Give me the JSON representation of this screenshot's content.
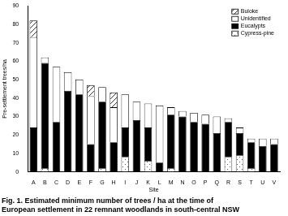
{
  "chart_data": {
    "type": "bar",
    "title": "Fig. 1. Estimated minimum number of trees / ha at the time of European settlement in 22 remnant woodlands in south-central NSW",
    "x_label": "Site",
    "y_label": "Pre-settlement trees/ha",
    "categories": [
      "A",
      "B",
      "C",
      "D",
      "E",
      "F",
      "G",
      "H",
      "I",
      "J",
      "K",
      "L",
      "M",
      "N",
      "O",
      "P",
      "Q",
      "R",
      "S",
      "T",
      "U",
      "V"
    ],
    "series": [
      {
        "name": "Cypress-pine",
        "color": "#ffffff",
        "values": [
          0,
          2,
          0,
          0,
          0,
          0,
          2,
          0,
          8,
          0,
          6,
          0,
          2,
          0,
          0,
          0,
          0,
          8,
          9,
          2,
          0,
          0
        ]
      },
      {
        "name": "Eucalypts",
        "color": "#000000",
        "values": [
          24,
          57,
          27,
          44,
          42,
          15,
          36,
          16,
          16,
          28,
          18,
          5,
          29,
          30,
          27,
          26,
          21,
          19,
          12,
          14,
          14,
          15
        ]
      },
      {
        "name": "Unidentified",
        "color": "#ffffff",
        "values": [
          49,
          3,
          30,
          10,
          8,
          26,
          8,
          19,
          18,
          10,
          13,
          31,
          4,
          3,
          5,
          5,
          9,
          2,
          3,
          2,
          4,
          3
        ]
      },
      {
        "name": "Buloke",
        "color": "#ffffff",
        "values": [
          9,
          0,
          0,
          0,
          0,
          6,
          0,
          8,
          0,
          0,
          0,
          0,
          0,
          0,
          0,
          0,
          0,
          0,
          0,
          0,
          0,
          0
        ]
      }
    ],
    "stacked": true,
    "ylim": [
      0,
      90
    ],
    "yticks": [
      0,
      10,
      20,
      30,
      40,
      50,
      60,
      70,
      80,
      90
    ],
    "grid": false,
    "legend": "upper right"
  }
}
